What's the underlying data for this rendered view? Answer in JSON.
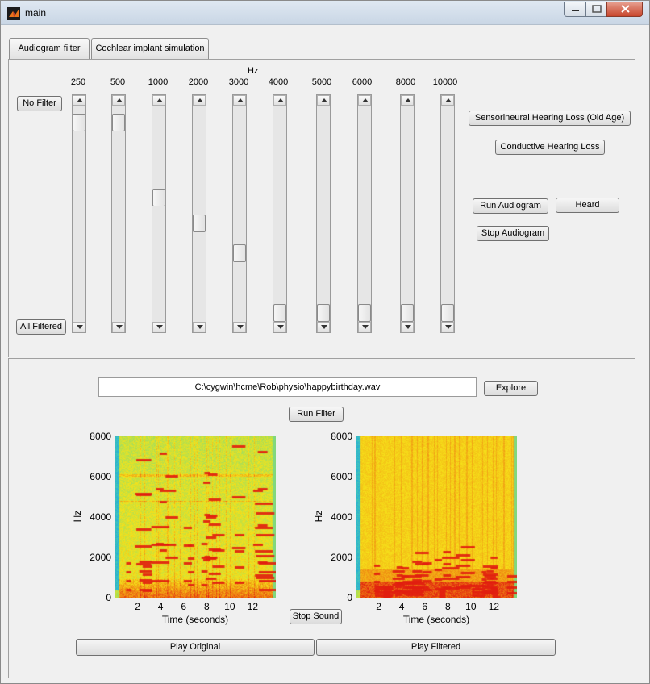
{
  "window": {
    "title": "main"
  },
  "tabs": [
    {
      "label": "Audiogram filter"
    },
    {
      "label": "Cochlear implant simulation"
    }
  ],
  "audiogram": {
    "unit_label": "Hz",
    "top_button": "No Filter",
    "bottom_button": "All Filtered",
    "sliders": [
      {
        "freq": "250",
        "level": 0.04
      },
      {
        "freq": "500",
        "level": 0.04
      },
      {
        "freq": "1000",
        "level": 0.42
      },
      {
        "freq": "2000",
        "level": 0.55
      },
      {
        "freq": "3000",
        "level": 0.7
      },
      {
        "freq": "4000",
        "level": 1.0
      },
      {
        "freq": "5000",
        "level": 1.0
      },
      {
        "freq": "6000",
        "level": 1.0
      },
      {
        "freq": "8000",
        "level": 1.0
      },
      {
        "freq": "10000",
        "level": 1.0
      }
    ],
    "buttons": {
      "sensorineural": "Sensorineural Hearing Loss (Old Age)",
      "conductive": "Conductive Hearing Loss",
      "run": "Run Audiogram",
      "heard": "Heard",
      "stop": "Stop Audiogram"
    }
  },
  "file": {
    "path": "C:\\cygwin\\hcme\\Rob\\physio\\happybirthday.wav",
    "explore": "Explore",
    "run_filter": "Run Filter",
    "stop_sound": "Stop Sound",
    "play_original": "Play Original",
    "play_filtered": "Play Filtered"
  },
  "chart_data": [
    {
      "type": "heatmap",
      "title": "",
      "xlabel": "Time (seconds)",
      "ylabel": "Hz",
      "xlim": [
        0,
        14
      ],
      "ylim": [
        0,
        8000
      ],
      "xticks": [
        "2",
        "4",
        "6",
        "8",
        "10",
        "12"
      ],
      "yticks": [
        "0",
        "2000",
        "4000",
        "6000",
        "8000"
      ],
      "colormap": [
        "#1fa2e0",
        "#4ad0b0",
        "#b8e04a",
        "#f6e21a",
        "#f08b12",
        "#e01a10"
      ]
    },
    {
      "type": "heatmap",
      "title": "",
      "xlabel": "Time (seconds)",
      "ylabel": "Hz",
      "xlim": [
        0,
        14
      ],
      "ylim": [
        0,
        8000
      ],
      "xticks": [
        "2",
        "4",
        "6",
        "8",
        "10",
        "12"
      ],
      "yticks": [
        "0",
        "2000",
        "4000",
        "6000",
        "8000"
      ],
      "colormap": [
        "#1fa2e0",
        "#4ad0b0",
        "#b8e04a",
        "#f6e21a",
        "#f08b12",
        "#e01a10"
      ]
    }
  ]
}
